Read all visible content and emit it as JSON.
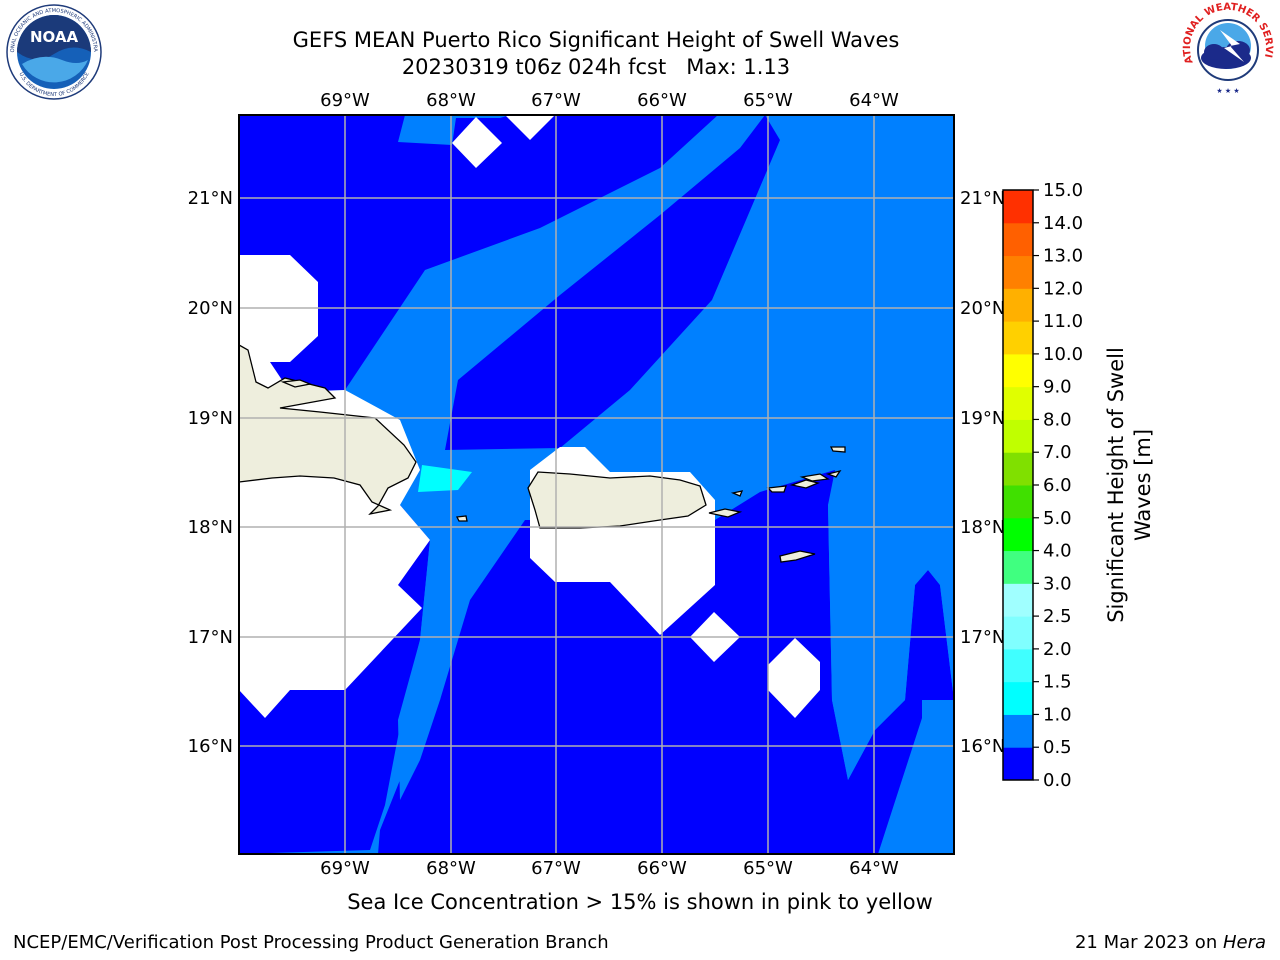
{
  "title": {
    "line1": "GEFS MEAN Puerto Rico Significant Height of Swell Waves",
    "line2": "20230319 t06z 024h fcst   Max: 1.13"
  },
  "map": {
    "lon_labels": [
      "69°W",
      "68°W",
      "67°W",
      "66°W",
      "65°W",
      "64°W"
    ],
    "lat_labels": [
      "21°N",
      "20°N",
      "19°N",
      "18°N",
      "17°N",
      "16°N"
    ],
    "colors": {
      "band_0_0.5": "#0000ff",
      "band_0.5_1": "#0080ff",
      "band_1_1.5": "#00ffff",
      "land": "#eeeedd",
      "grid": "#b0b0b0"
    }
  },
  "colorbar": {
    "label_line1": "Significant Height of Swell",
    "label_line2": "Waves [m]",
    "ticks": [
      "0.0",
      "0.5",
      "1.0",
      "1.5",
      "2.0",
      "2.5",
      "3.0",
      "4.0",
      "5.0",
      "6.0",
      "7.0",
      "8.0",
      "9.0",
      "10.0",
      "11.0",
      "12.0",
      "13.0",
      "14.0",
      "15.0"
    ],
    "colors": [
      "#0000ff",
      "#0080ff",
      "#00ffff",
      "#40ffff",
      "#80ffff",
      "#a0ffff",
      "#40ff80",
      "#00ff00",
      "#40e000",
      "#80e000",
      "#c0ff00",
      "#e0ff00",
      "#ffff00",
      "#ffd000",
      "#ffb000",
      "#ff8000",
      "#ff6000",
      "#ff3000"
    ]
  },
  "logos": {
    "noaa_text": "NOAA",
    "noaa_ring": "NATIONAL OCEANIC AND ATMOSPHERIC ADMINISTRATION",
    "noaa_ring_bottom": "U.S. DEPARTMENT OF COMMERCE",
    "nws_ring": "NATIONAL WEATHER SERVICE"
  },
  "footer": {
    "caption": "Sea Ice Concentration > 15% is shown in pink to yellow",
    "left": "NCEP/EMC/Verification Post Processing Product Generation Branch",
    "right_date": "21 Mar 2023 on ",
    "right_host": "Hera"
  }
}
